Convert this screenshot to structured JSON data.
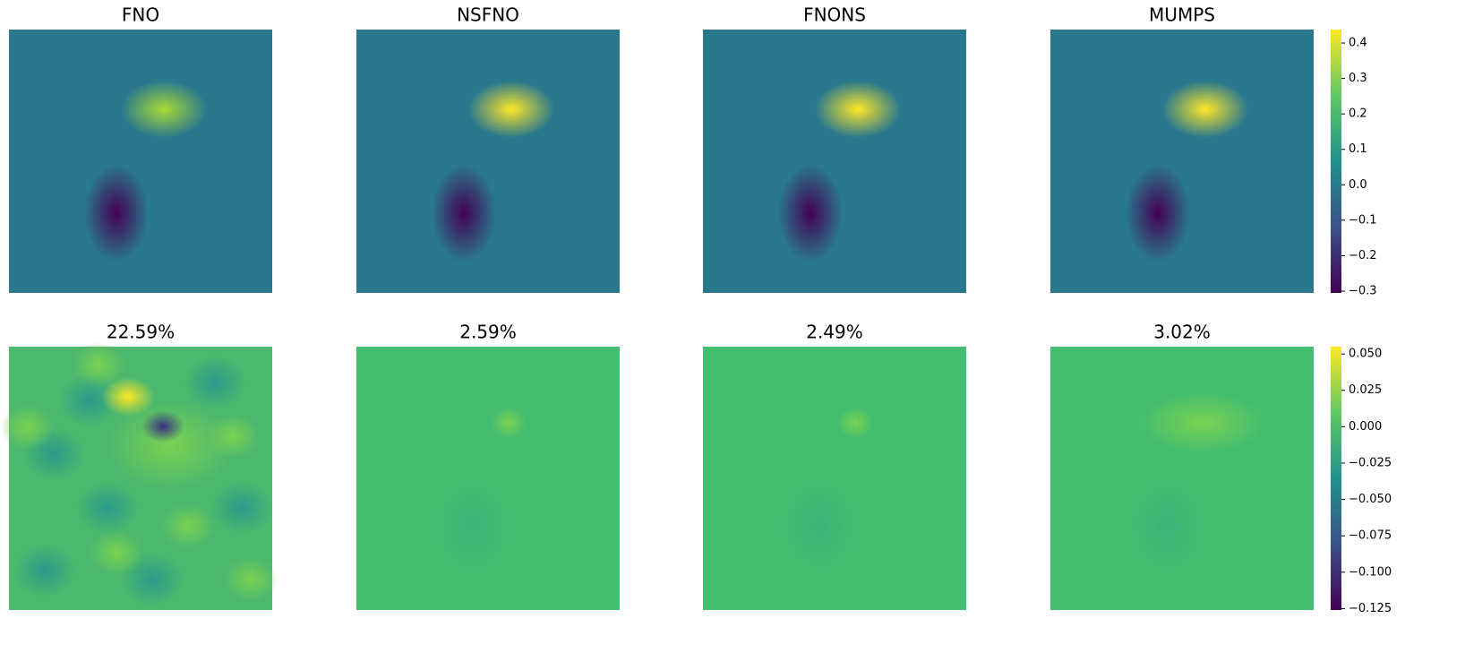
{
  "chart_data": [
    {
      "type": "heatmap",
      "titles": [
        "FNO",
        "NSFNO",
        "FNONS",
        "MUMPS"
      ],
      "colorbar": {
        "zlim": [
          -0.305,
          0.438
        ],
        "zticks": [
          {
            "value": -0.3,
            "label": "−0.3"
          },
          {
            "value": -0.2,
            "label": "−0.2"
          },
          {
            "value": -0.1,
            "label": "−0.1"
          },
          {
            "value": 0,
            "label": "0.0"
          },
          0.1,
          0.2,
          0.3,
          0.4
        ]
      }
    },
    {
      "type": "heatmap",
      "titles": [
        "22.59%",
        "2.59%",
        "2.49%",
        "3.02%"
      ],
      "colorbar": {
        "zlim": [
          -0.126,
          0.055
        ],
        "zticks": [
          {
            "value": -0.125,
            "label": "−0.125"
          },
          {
            "value": -0.1,
            "label": "−0.100"
          },
          {
            "value": -0.075,
            "label": "−0.075"
          },
          {
            "value": -0.05,
            "label": "−0.050"
          },
          {
            "value": -0.025,
            "label": "−0.025"
          },
          {
            "value": 0,
            "label": "0.000"
          },
          0.025,
          {
            "value": 0.05,
            "label": "0.050"
          }
        ]
      }
    }
  ]
}
